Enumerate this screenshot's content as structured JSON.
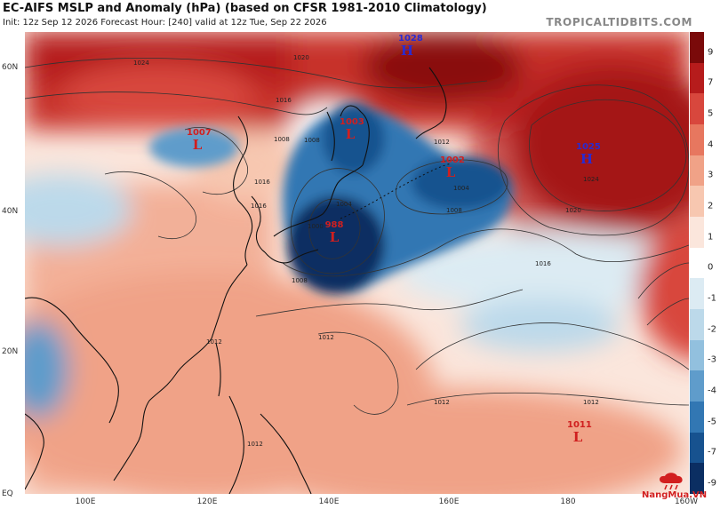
{
  "header": {
    "title": "EC-AIFS MSLP and Anomaly (hPa) (based on CFSR 1981-2010 Climatology)",
    "subtitle": "Init: 12z Sep 12 2026   Forecast Hour: [240]   valid at 12z Tue, Sep 22 2026",
    "site": "TROPICALTIDBITS.COM"
  },
  "axes": {
    "lat_labels": [
      "60N",
      "40N",
      "20N",
      "EQ"
    ],
    "lon_labels": [
      "100E",
      "120E",
      "140E",
      "160E",
      "180",
      "160W"
    ]
  },
  "pressure_centers": [
    {
      "type": "H",
      "value": "1028"
    },
    {
      "type": "L",
      "value": "1007"
    },
    {
      "type": "L",
      "value": "1003"
    },
    {
      "type": "L",
      "value": "1002"
    },
    {
      "type": "H",
      "value": "1025"
    },
    {
      "type": "L",
      "value": "988"
    },
    {
      "type": "L",
      "value": "1011"
    }
  ],
  "isobar_labels": [
    "1024",
    "1020",
    "1016",
    "1012",
    "1008",
    "1004",
    "1000",
    "1024",
    "1020",
    "1016",
    "1016",
    "1012",
    "1008",
    "1008",
    "1008",
    "1004",
    "1012",
    "1012",
    "1012",
    "1012",
    "1016"
  ],
  "colorbar": {
    "labels": [
      "9",
      "7",
      "5",
      "4",
      "3",
      "2",
      "1",
      "0",
      "-1",
      "-2",
      "-3",
      "-4",
      "-5",
      "-7",
      "-9"
    ],
    "colors": [
      "#7a0a0a",
      "#b61c1c",
      "#d8473d",
      "#e7775f",
      "#f0a287",
      "#f7c7b0",
      "#fbe6dc",
      "#ffffff",
      "#dcebf3",
      "#bcd9ea",
      "#92c0de",
      "#5f9ccb",
      "#3277b3",
      "#17528f",
      "#0b2e62"
    ]
  },
  "logo": {
    "text": "NangMua.VN"
  }
}
